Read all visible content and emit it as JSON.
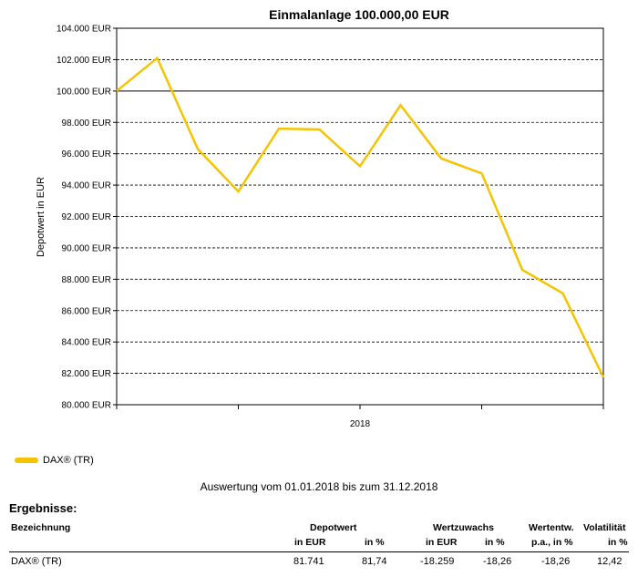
{
  "chart_data": {
    "type": "line",
    "title": "Einmalanlage 100.000,00 EUR",
    "ylabel": "Depotwert in EUR",
    "xlabel": "",
    "x_tick_labels": [
      "2018"
    ],
    "ylim": [
      80000,
      104000
    ],
    "y_ticks": [
      80000,
      82000,
      84000,
      86000,
      88000,
      90000,
      92000,
      94000,
      96000,
      98000,
      100000,
      102000,
      104000
    ],
    "y_tick_labels": [
      "80.000 EUR",
      "82.000 EUR",
      "84.000 EUR",
      "86.000 EUR",
      "88.000 EUR",
      "90.000 EUR",
      "92.000 EUR",
      "94.000 EUR",
      "96.000 EUR",
      "98.000 EUR",
      "100.000 EUR",
      "102.000 EUR",
      "104.000 EUR"
    ],
    "reference_line": 100000,
    "grid": true,
    "legend_position": "bottom-left",
    "series": [
      {
        "name": "DAX® (TR)",
        "color": "#f5c400",
        "values": [
          100000,
          102100,
          96300,
          93600,
          97600,
          97550,
          95200,
          99100,
          95700,
          94750,
          88600,
          87100,
          81741
        ]
      }
    ]
  },
  "legend": {
    "label": "DAX® (TR)"
  },
  "period": {
    "prefix": "Auswertung vom ",
    "from": "01.01.2018",
    "middle": " bis zum ",
    "to": "31.12.2018"
  },
  "results": {
    "title": "Ergebnisse:",
    "header": {
      "name": "Bezeichnung",
      "depotwert": "Depotwert",
      "depot_eur": "in EUR",
      "depot_pct": "in %",
      "wertzuwachs": "Wertzuwachs",
      "wz_eur": "in EUR",
      "wz_pct": "in %",
      "wertentw": "Wertentw.",
      "wertentw_sub": "p.a., in %",
      "volatilitaet": "Volatilität",
      "vol_sub": "in %"
    },
    "rows": [
      {
        "name": "DAX® (TR)",
        "depot_eur": "81.741",
        "depot_pct": "81,74",
        "wz_eur": "-18.259",
        "wz_pct": "-18,26",
        "wertentw": "-18,26",
        "vol": "12,42"
      }
    ]
  }
}
